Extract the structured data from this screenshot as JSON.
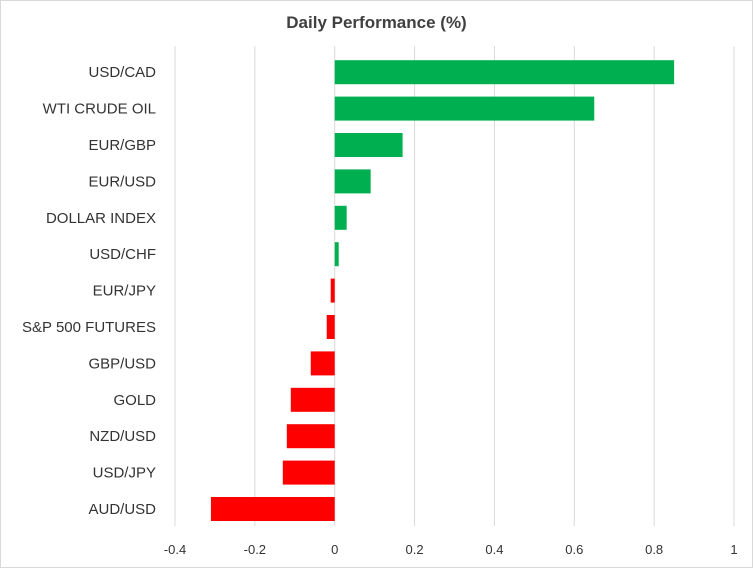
{
  "chart_data": {
    "type": "bar",
    "orientation": "horizontal",
    "title": "Daily Performance (%)",
    "xlabel": "",
    "ylabel": "",
    "categories": [
      "USD/CAD",
      "WTI CRUDE OIL",
      "EUR/GBP",
      "EUR/USD",
      "DOLLAR INDEX",
      "USD/CHF",
      "EUR/JPY",
      "S&P 500 FUTURES",
      "GBP/USD",
      "GOLD",
      "NZD/USD",
      "USD/JPY",
      "AUD/USD"
    ],
    "values": [
      0.85,
      0.65,
      0.17,
      0.09,
      0.03,
      0.01,
      -0.01,
      -0.02,
      -0.06,
      -0.11,
      -0.12,
      -0.13,
      -0.31
    ],
    "xlim": [
      -0.4,
      1
    ],
    "xticks": [
      "-0.4",
      "-0.2",
      "0",
      "0.2",
      "0.4",
      "0.6",
      "0.8",
      "1"
    ],
    "grid": "vertical",
    "legend": "none",
    "colors": {
      "positive": "#00b050",
      "negative": "#ff0000",
      "grid": "#d9d9d9",
      "text": "#333333"
    }
  }
}
